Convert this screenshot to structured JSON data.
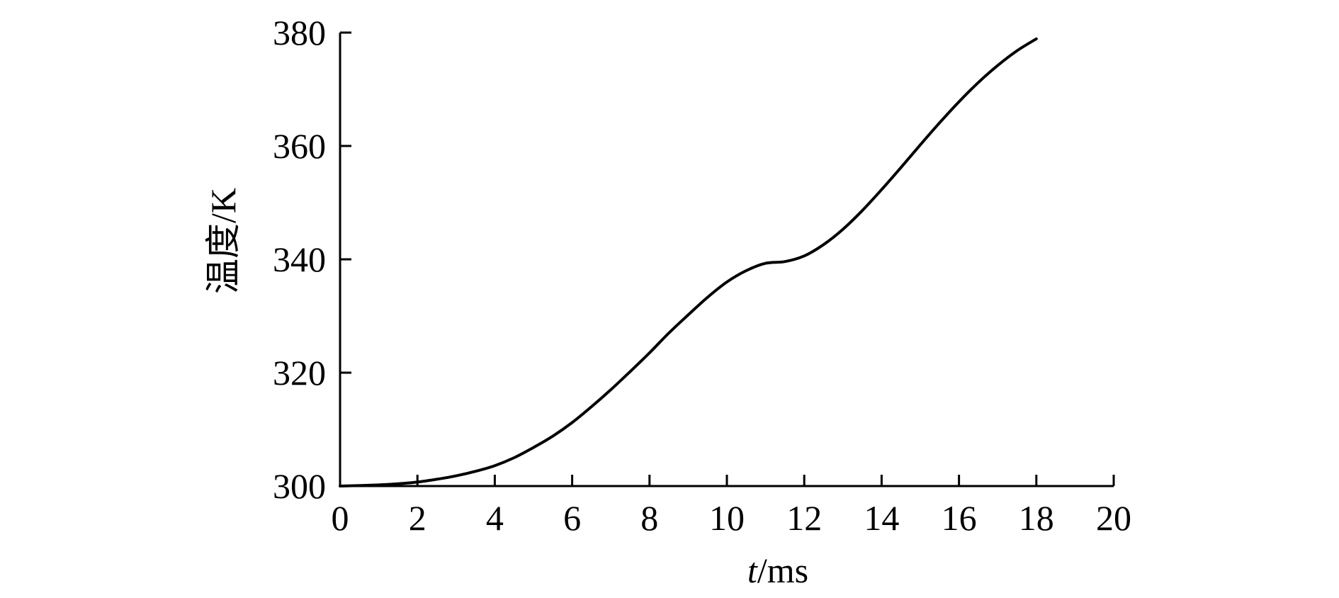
{
  "chart_data": {
    "type": "line",
    "xlabel_italic": "t",
    "xlabel_unit": "/ms",
    "ylabel": "温度/K",
    "xlim": [
      0,
      20
    ],
    "ylim": [
      300,
      380
    ],
    "grid": false,
    "x_ticks": [
      0,
      2,
      4,
      6,
      8,
      10,
      12,
      14,
      16,
      18,
      20
    ],
    "x_tick_labels": [
      "0",
      "2",
      "4",
      "6",
      "8",
      "10",
      "12",
      "14",
      "16",
      "18",
      "20"
    ],
    "y_ticks": [
      300,
      320,
      340,
      360,
      380
    ],
    "y_tick_labels": [
      "300",
      "320",
      "340",
      "360",
      "380"
    ],
    "series": [
      {
        "x": [
          0,
          1,
          1.5,
          2,
          2.5,
          3,
          3.5,
          4,
          4.5,
          5,
          5.5,
          6,
          6.5,
          7,
          7.5,
          8,
          8.5,
          9,
          9.5,
          10,
          10.5,
          11,
          11.5,
          12,
          12.5,
          13,
          13.5,
          14,
          14.5,
          15,
          15.5,
          16,
          16.5,
          17,
          17.5,
          18
        ],
        "y": [
          300,
          300.2,
          300.4,
          300.7,
          301.2,
          301.8,
          302.6,
          303.6,
          305,
          306.8,
          308.8,
          311.2,
          314,
          317,
          320.2,
          323.5,
          327,
          330.2,
          333.3,
          336,
          338,
          339.3,
          339.6,
          340.6,
          342.6,
          345.3,
          348.6,
          352.3,
          356.2,
          360.2,
          364.1,
          367.8,
          371.2,
          374.2,
          376.8,
          378.9
        ]
      }
    ]
  }
}
